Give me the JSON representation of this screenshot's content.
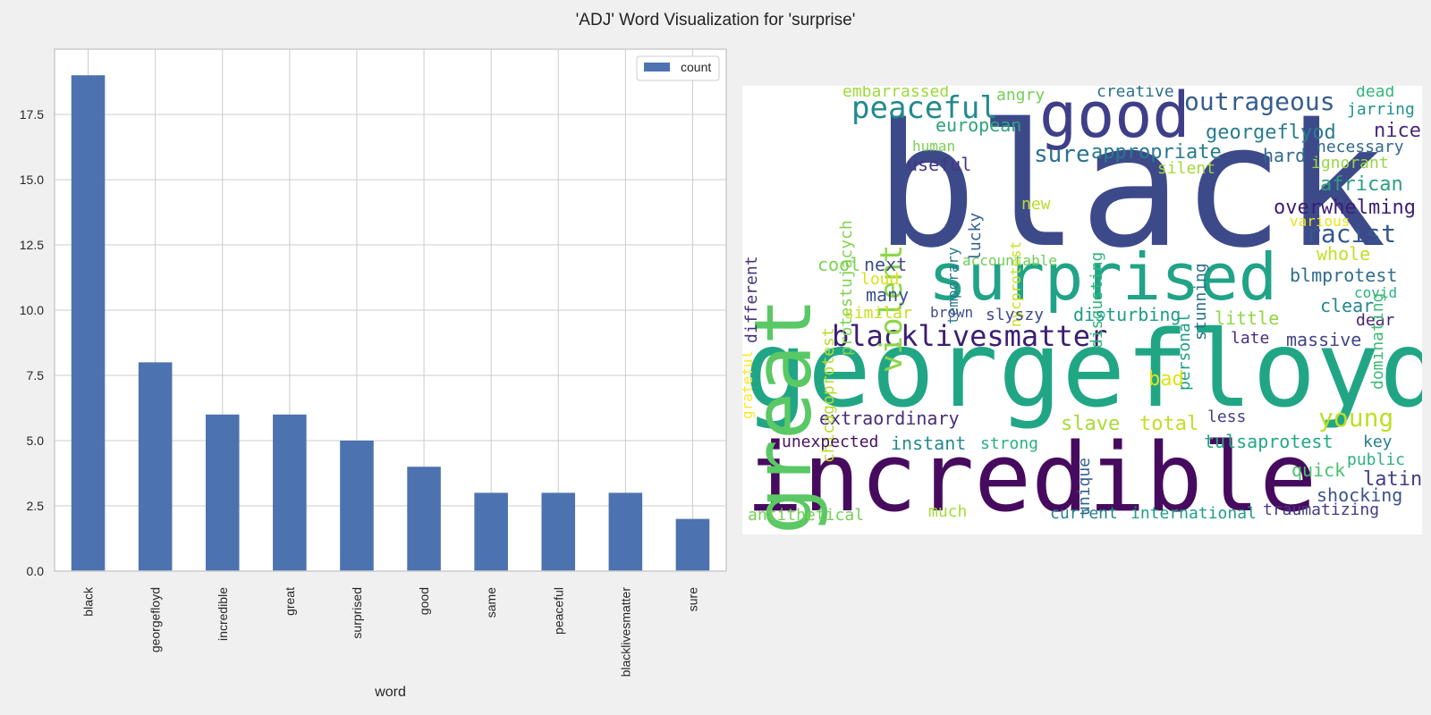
{
  "figure_title": "'ADJ' Word Visualization for 'surprise'",
  "chart_data": [
    {
      "type": "bar",
      "categories": [
        "black",
        "georgefloyd",
        "incredible",
        "great",
        "surprised",
        "good",
        "same",
        "peaceful",
        "blacklivesmatter",
        "sure"
      ],
      "series": [
        {
          "name": "count",
          "values": [
            19,
            8,
            6,
            6,
            5,
            4,
            3,
            3,
            3,
            2
          ]
        }
      ],
      "xlabel": "word",
      "ylabel": "",
      "ylim": [
        0,
        20
      ],
      "yticks": [
        0.0,
        2.5,
        5.0,
        7.5,
        10.0,
        12.5,
        15.0,
        17.5
      ],
      "ytick_labels": [
        "0.0",
        "2.5",
        "5.0",
        "7.5",
        "10.0",
        "12.5",
        "15.0",
        "17.5"
      ],
      "legend": "top-right",
      "grid": true,
      "bar_color": "#4c72b0"
    },
    {
      "type": "wordcloud",
      "words": [
        "black",
        "georgefloyd",
        "incredible",
        "surprised",
        "great",
        "good",
        "peaceful",
        "outrageous",
        "blacklivesmatter",
        "violent",
        "racist",
        "overwhelming",
        "appropriate",
        "georgeflyod",
        "european",
        "extraordinary",
        "young",
        "instant",
        "tulsaprotest",
        "embarrassed",
        "angry",
        "creative",
        "dead",
        "jarring",
        "nice",
        "necessary",
        "ignorant",
        "hard",
        "african",
        "sure",
        "useful",
        "human",
        "silent",
        "chicagoprotest",
        "protestujących",
        "different",
        "grateful",
        "temporary",
        "lucky",
        "nycprotest",
        "new",
        "disgusting",
        "stunning",
        "various",
        "whole",
        "accountable",
        "cool",
        "next",
        "loud",
        "many",
        "blmprotest",
        "covid",
        "clear",
        "dear",
        "similar",
        "brown",
        "slyszy",
        "disturbing",
        "little",
        "dominating",
        "personal",
        "late",
        "massive",
        "bad",
        "less",
        "slave",
        "total",
        "key",
        "unexpected",
        "strong",
        "unique",
        "public",
        "latin",
        "quick",
        "shocking",
        "antithetical",
        "much",
        "current",
        "international",
        "traumatizing"
      ]
    }
  ]
}
